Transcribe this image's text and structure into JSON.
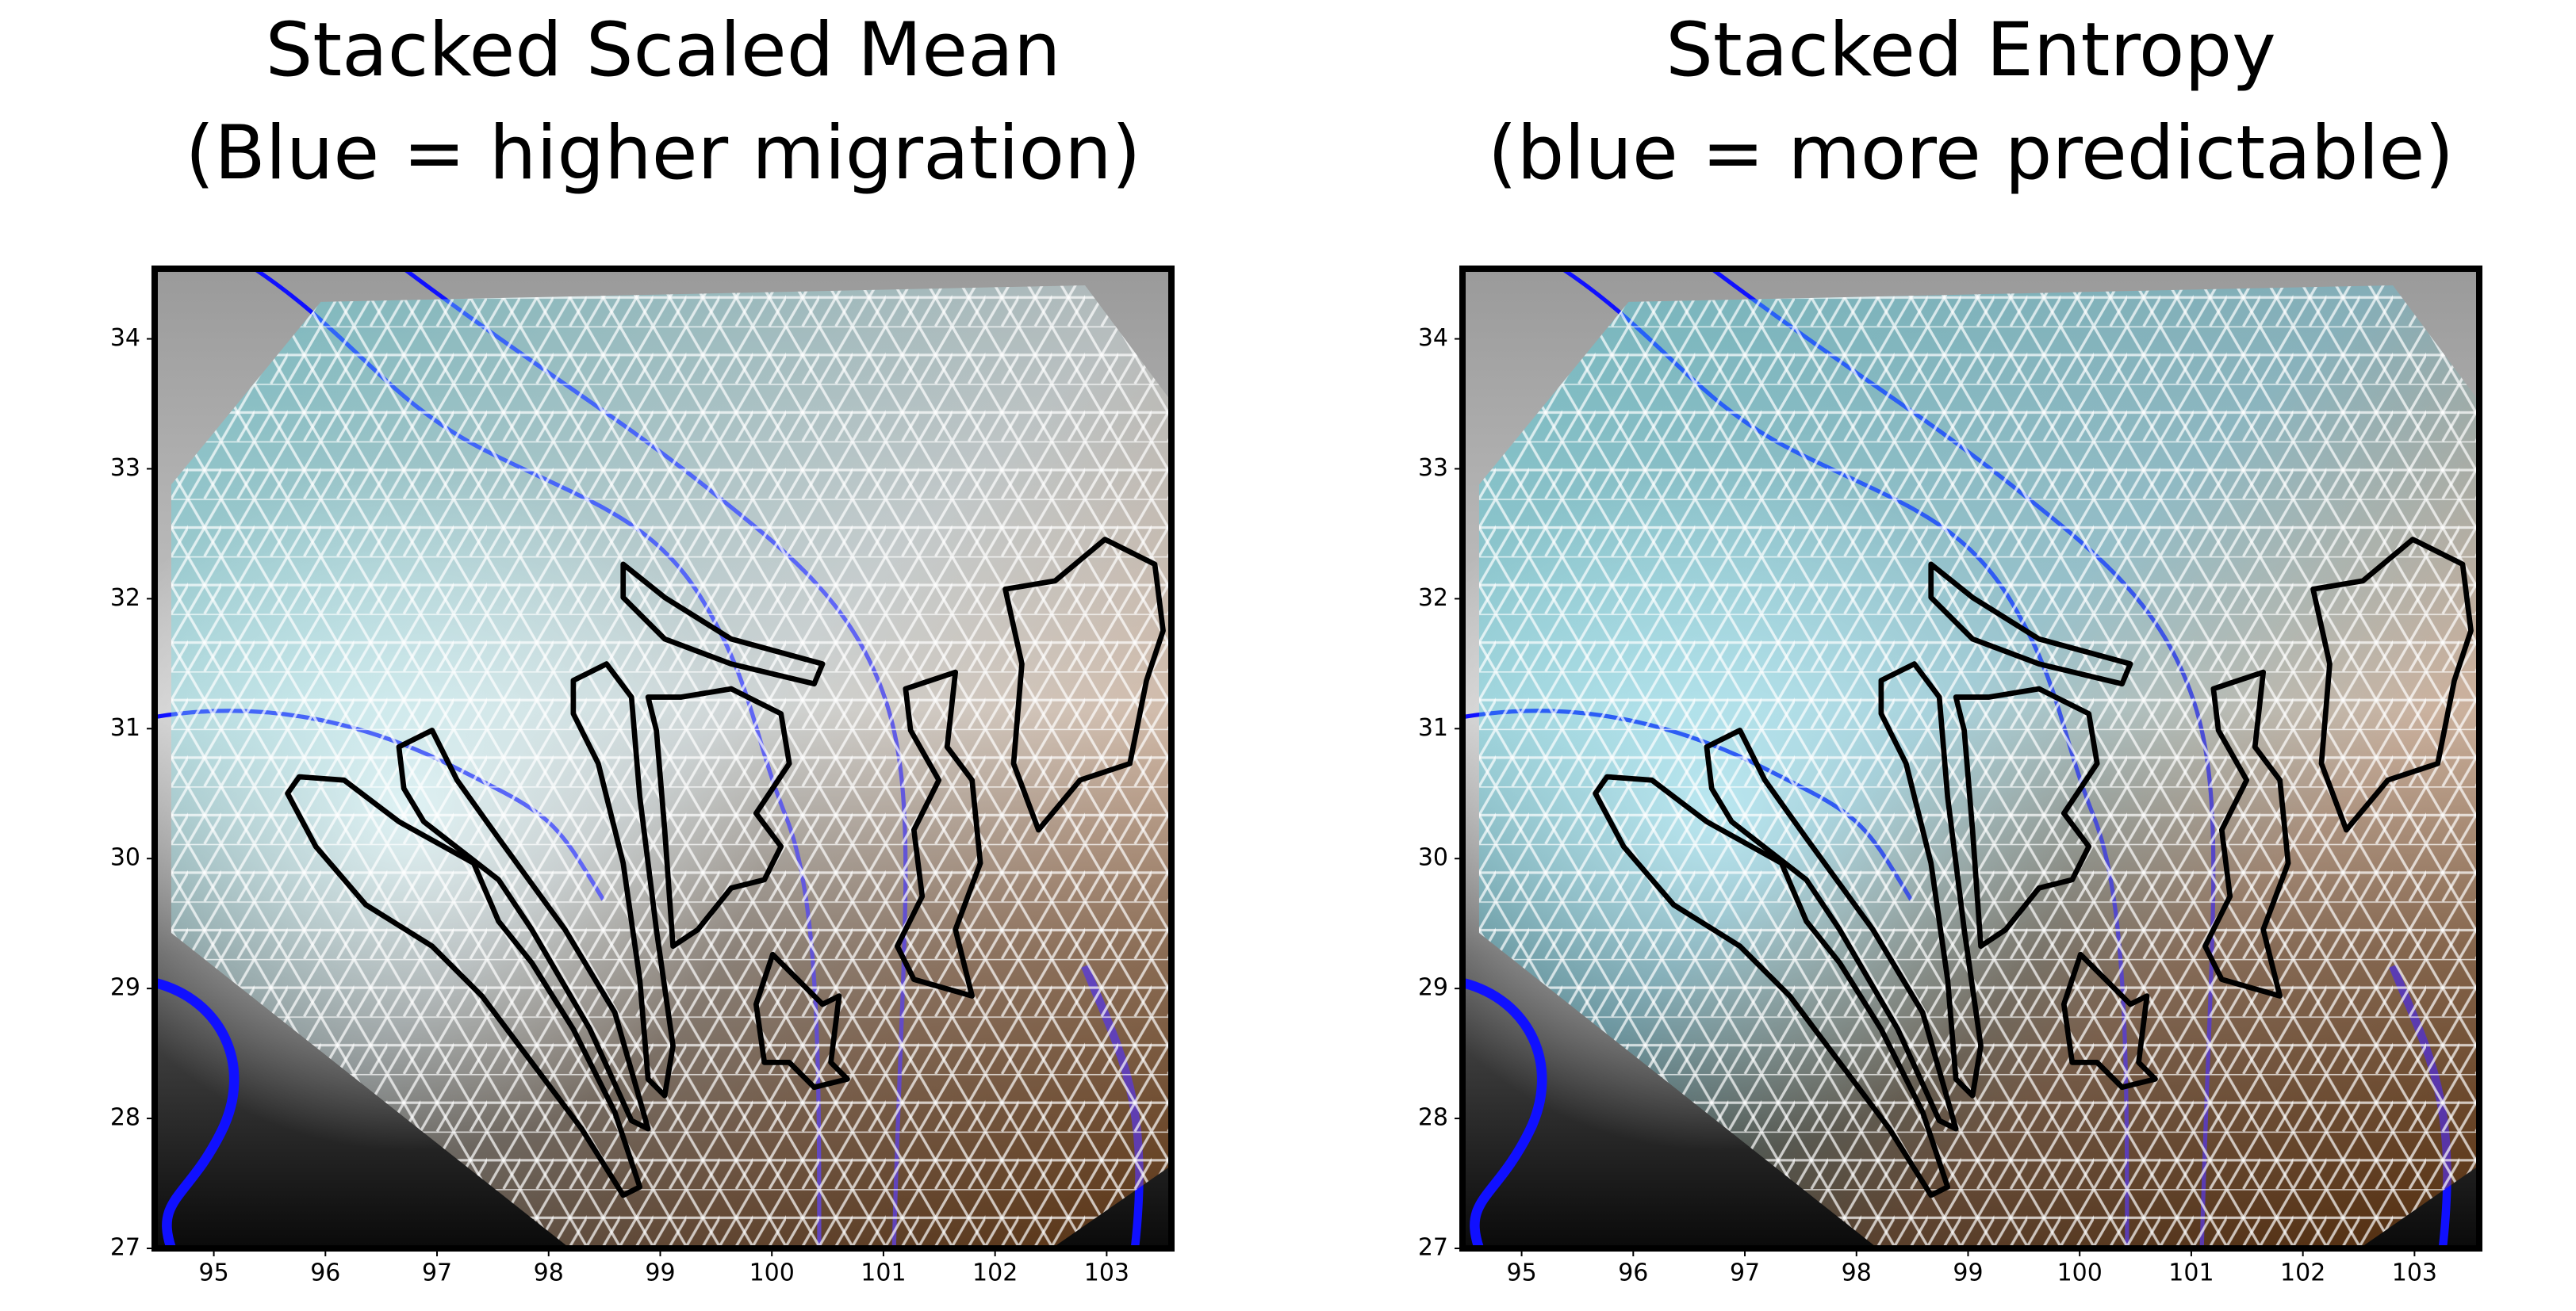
{
  "chart_data": [
    {
      "type": "map",
      "title": [
        "Stacked Scaled Mean",
        "(Blue = higher migration)"
      ],
      "xlim": [
        94.47,
        103.58
      ],
      "ylim": [
        27,
        34.54
      ],
      "xticks": [
        95,
        96,
        97,
        98,
        99,
        100,
        101,
        102,
        103
      ],
      "yticks": [
        27,
        28,
        29,
        30,
        31,
        32,
        33,
        34
      ]
    },
    {
      "type": "map",
      "title": [
        "Stacked Entropy",
        "(blue = more predictable)"
      ],
      "xlim": [
        94.47,
        103.58
      ],
      "ylim": [
        27,
        34.54
      ],
      "xticks": [
        95,
        96,
        97,
        98,
        99,
        100,
        101,
        102,
        103
      ],
      "yticks": [
        27,
        28,
        29,
        30,
        31,
        32,
        33,
        34
      ]
    }
  ]
}
